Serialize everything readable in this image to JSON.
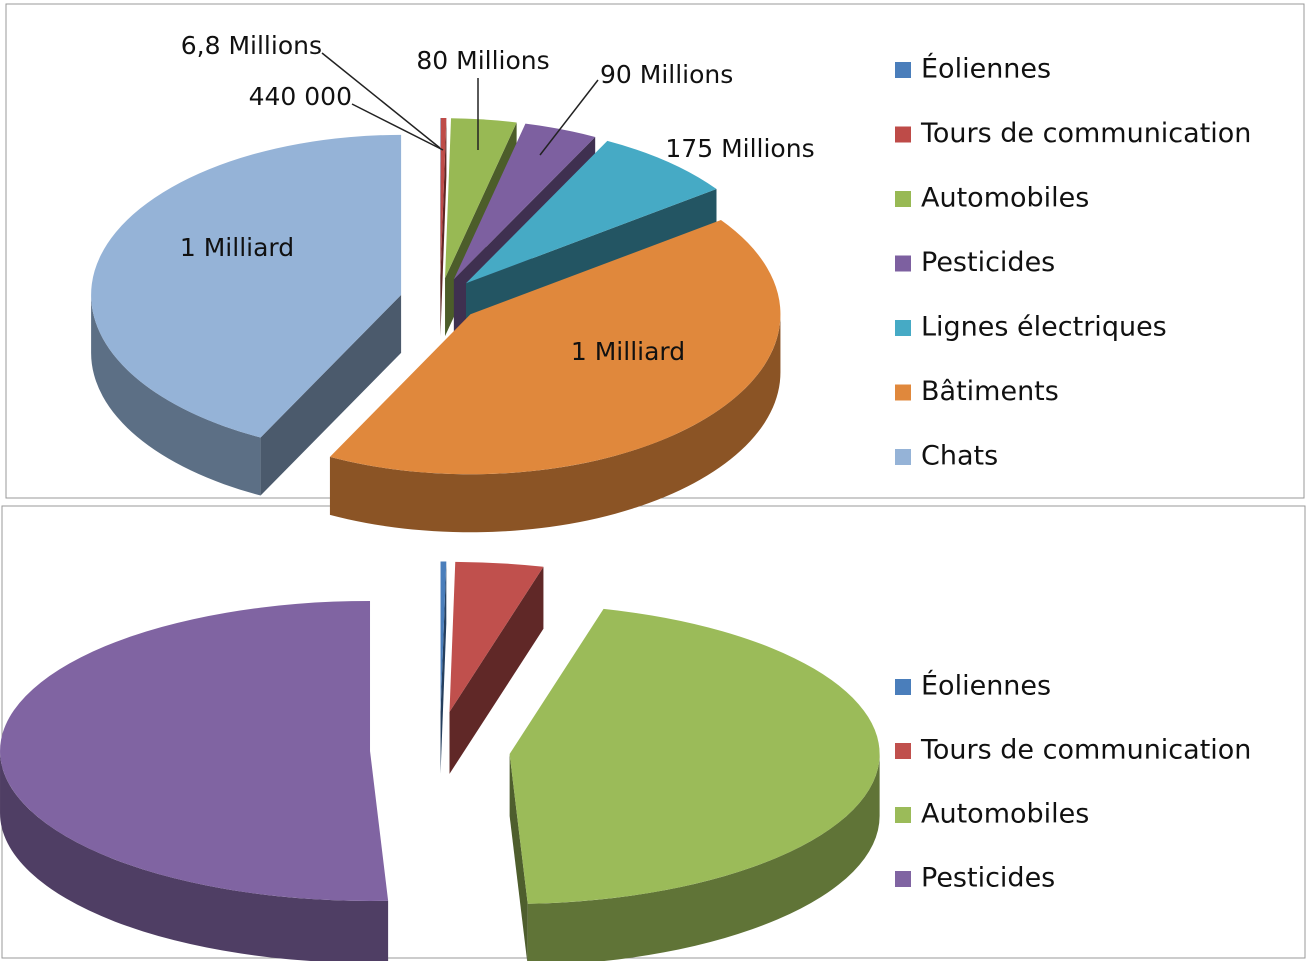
{
  "chart_data": [
    {
      "type": "pie",
      "categories": [
        "Éoliennes",
        "Tours de communication",
        "Automobiles",
        "Pesticides",
        "Lignes électriques",
        "Bâtiments",
        "Chats"
      ],
      "values": [
        440000,
        6800000,
        80000000,
        90000000,
        175000000,
        1000000000,
        1000000000
      ],
      "value_labels": [
        "440 000",
        "6,8 Millions",
        "80 Millions",
        "90 Millions",
        "175 Millions",
        "1 Milliard",
        "1 Milliard"
      ],
      "colors": [
        "#4a7ebb",
        "#be4b48",
        "#98b954",
        "#7d60a0",
        "#46aac5",
        "#e0883c",
        "#95b3d7"
      ],
      "legend": "right"
    },
    {
      "type": "pie",
      "categories": [
        "Éoliennes",
        "Tours de communication",
        "Automobiles",
        "Pesticides"
      ],
      "values": [
        440000,
        6800000,
        80000000,
        90000000
      ],
      "colors": [
        "#4a7ebb",
        "#c0504d",
        "#9bbb59",
        "#8064a2"
      ],
      "legend": "right"
    }
  ]
}
